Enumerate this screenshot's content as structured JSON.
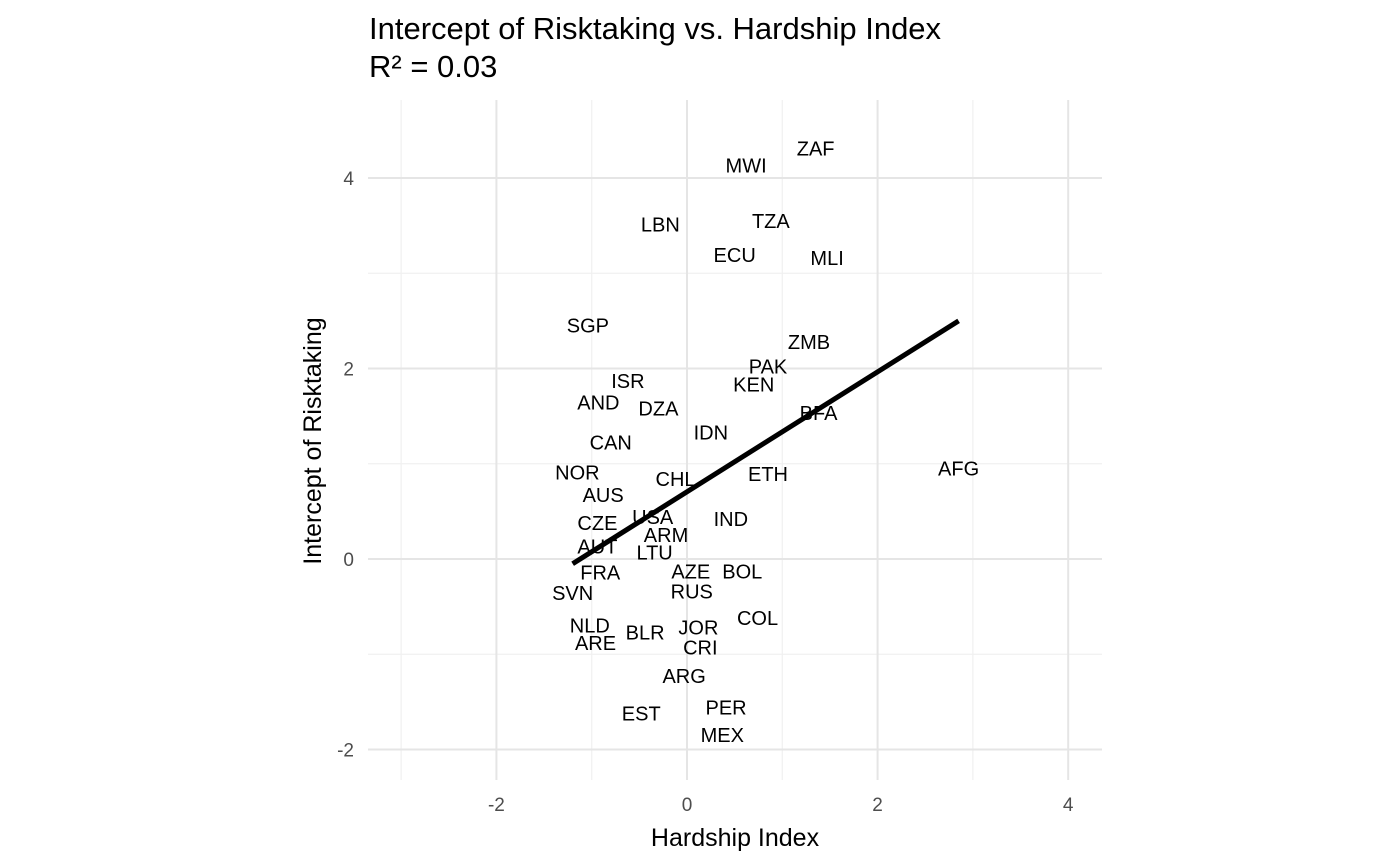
{
  "chart_data": {
    "type": "scatter",
    "title": "Intercept of Risktaking vs. Hardship Index",
    "subtitle": "R² = 0.03",
    "xlabel": "Hardship Index",
    "ylabel": "Intercept of Risktaking",
    "xlim": [
      -3.0,
      4.35
    ],
    "ylim": [
      -2.35,
      4.8
    ],
    "x_ticks": [
      -2,
      0,
      2,
      4
    ],
    "y_ticks": [
      -2,
      0,
      2,
      4
    ],
    "grid": true,
    "point_style": "text-labels",
    "points": [
      {
        "label": "ZAF",
        "x": 1.35,
        "y": 4.3
      },
      {
        "label": "MWI",
        "x": 0.62,
        "y": 4.12
      },
      {
        "label": "LBN",
        "x": -0.28,
        "y": 3.5
      },
      {
        "label": "TZA",
        "x": 0.88,
        "y": 3.54
      },
      {
        "label": "ECU",
        "x": 0.5,
        "y": 3.18
      },
      {
        "label": "MLI",
        "x": 1.47,
        "y": 3.15
      },
      {
        "label": "SGP",
        "x": -1.04,
        "y": 2.44
      },
      {
        "label": "ZMB",
        "x": 1.28,
        "y": 2.27
      },
      {
        "label": "PAK",
        "x": 0.85,
        "y": 2.01
      },
      {
        "label": "ISR",
        "x": -0.62,
        "y": 1.86
      },
      {
        "label": "KEN",
        "x": 0.7,
        "y": 1.82
      },
      {
        "label": "AND",
        "x": -0.93,
        "y": 1.63
      },
      {
        "label": "DZA",
        "x": -0.3,
        "y": 1.57
      },
      {
        "label": "BFA",
        "x": 1.38,
        "y": 1.52
      },
      {
        "label": "IDN",
        "x": 0.25,
        "y": 1.32
      },
      {
        "label": "CAN",
        "x": -0.8,
        "y": 1.21
      },
      {
        "label": "NOR",
        "x": -1.15,
        "y": 0.9
      },
      {
        "label": "ETH",
        "x": 0.85,
        "y": 0.88
      },
      {
        "label": "AFG",
        "x": 2.85,
        "y": 0.94
      },
      {
        "label": "CHL",
        "x": -0.12,
        "y": 0.83
      },
      {
        "label": "AUS",
        "x": -0.88,
        "y": 0.66
      },
      {
        "label": "USA",
        "x": -0.36,
        "y": 0.43
      },
      {
        "label": "IND",
        "x": 0.46,
        "y": 0.41
      },
      {
        "label": "CZE",
        "x": -0.94,
        "y": 0.37
      },
      {
        "label": "ARM",
        "x": -0.22,
        "y": 0.24
      },
      {
        "label": "AUT",
        "x": -0.94,
        "y": 0.12
      },
      {
        "label": "LTU",
        "x": -0.34,
        "y": 0.06
      },
      {
        "label": "AZE",
        "x": 0.04,
        "y": -0.14
      },
      {
        "label": "BOL",
        "x": 0.58,
        "y": -0.14
      },
      {
        "label": "FRA",
        "x": -0.91,
        "y": -0.15
      },
      {
        "label": "SVN",
        "x": -1.2,
        "y": -0.37
      },
      {
        "label": "RUS",
        "x": 0.05,
        "y": -0.35
      },
      {
        "label": "COL",
        "x": 0.74,
        "y": -0.63
      },
      {
        "label": "NLD",
        "x": -1.02,
        "y": -0.71
      },
      {
        "label": "JOR",
        "x": 0.12,
        "y": -0.73
      },
      {
        "label": "BLR",
        "x": -0.44,
        "y": -0.78
      },
      {
        "label": "ARE",
        "x": -0.96,
        "y": -0.89
      },
      {
        "label": "CRI",
        "x": 0.14,
        "y": -0.94
      },
      {
        "label": "ARG",
        "x": -0.03,
        "y": -1.24
      },
      {
        "label": "PER",
        "x": 0.41,
        "y": -1.57
      },
      {
        "label": "EST",
        "x": -0.48,
        "y": -1.63
      },
      {
        "label": "MEX",
        "x": 0.37,
        "y": -1.86
      }
    ],
    "fit_line": {
      "x": [
        -1.2,
        2.85
      ],
      "y": [
        -0.05,
        2.5
      ]
    }
  }
}
